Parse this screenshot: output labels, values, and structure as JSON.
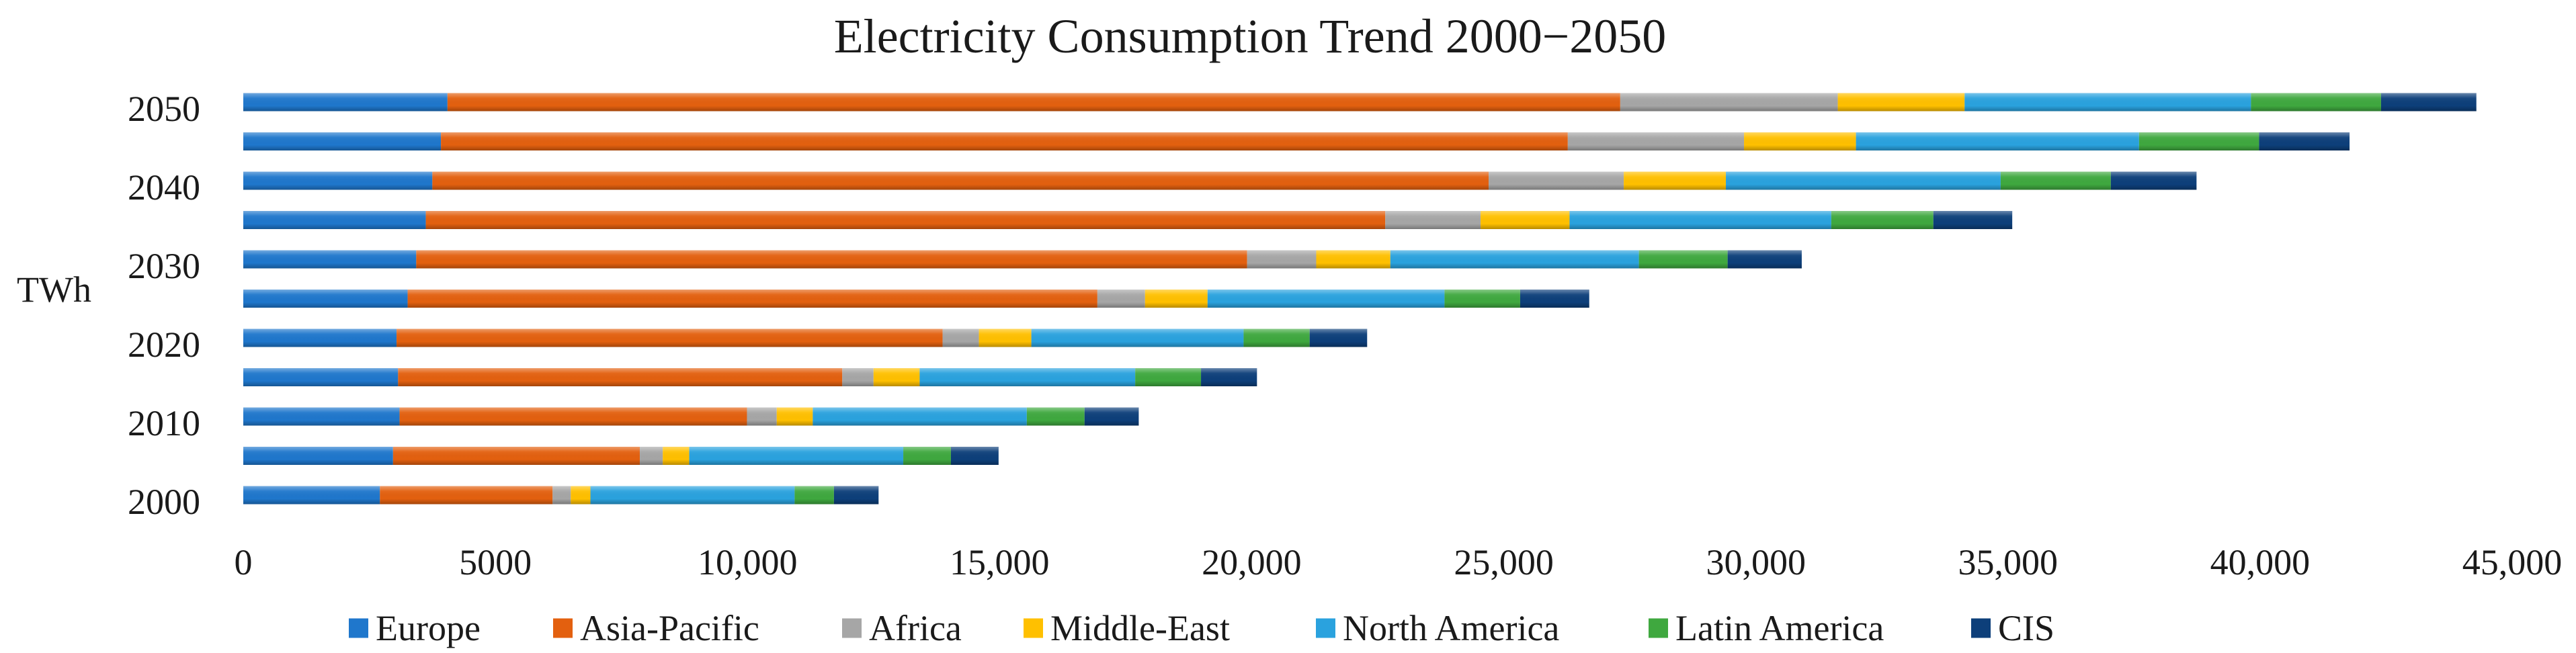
{
  "chart_data": {
    "type": "bar",
    "orientation": "horizontal",
    "stacked": true,
    "title": "Electricity Consumption Trend 2000−2050",
    "ylabel": "TWh",
    "xlabel": "",
    "xlim": [
      0,
      45000
    ],
    "xticks": [
      0,
      5000,
      10000,
      15000,
      20000,
      25000,
      30000,
      35000,
      40000,
      45000
    ],
    "xtick_labels": [
      "0",
      "5000",
      "10,000",
      "15,000",
      "20,000",
      "25,000",
      "30,000",
      "35,000",
      "40,000",
      "45,000"
    ],
    "y_values": [
      2000,
      2005,
      2010,
      2015,
      2020,
      2025,
      2030,
      2035,
      2040,
      2045,
      2050
    ],
    "ytick_values": [
      2000,
      2010,
      2020,
      2030,
      2040,
      2050
    ],
    "ytick_labels": [
      "2000",
      "2010",
      "2020",
      "2030",
      "2040",
      "2050"
    ],
    "grid": false,
    "legend_position": "bottom",
    "series": [
      {
        "name": "Europe",
        "color": "#1F77CC",
        "values": [
          2710,
          2970,
          3100,
          3070,
          3040,
          3260,
          3430,
          3620,
          3750,
          3920,
          4050
        ]
      },
      {
        "name": "Asia-Pacific",
        "color": "#E3600F",
        "values": [
          3425,
          4895,
          6890,
          8810,
          10830,
          13680,
          16480,
          19030,
          20950,
          22350,
          23260
        ]
      },
      {
        "name": "Africa",
        "color": "#A6A6A6",
        "values": [
          360,
          455,
          590,
          620,
          720,
          945,
          1370,
          1890,
          2680,
          3495,
          4315
        ]
      },
      {
        "name": "Middle-East",
        "color": "#FFC000",
        "values": [
          390,
          525,
          715,
          915,
          1040,
          1240,
          1470,
          1765,
          2025,
          2220,
          2515
        ]
      },
      {
        "name": "North America",
        "color": "#2AA2DE",
        "values": [
          4050,
          4245,
          4245,
          4275,
          4210,
          4700,
          4930,
          5190,
          5450,
          5615,
          5680
        ]
      },
      {
        "name": "Latin America",
        "color": "#3FA83F",
        "values": [
          780,
          945,
          1145,
          1305,
          1310,
          1500,
          1760,
          2025,
          2185,
          2380,
          2580
        ]
      },
      {
        "name": "CIS",
        "color": "#0D3F7A",
        "values": [
          885,
          945,
          1075,
          1110,
          1140,
          1370,
          1470,
          1565,
          1700,
          1795,
          1890
        ]
      }
    ]
  }
}
